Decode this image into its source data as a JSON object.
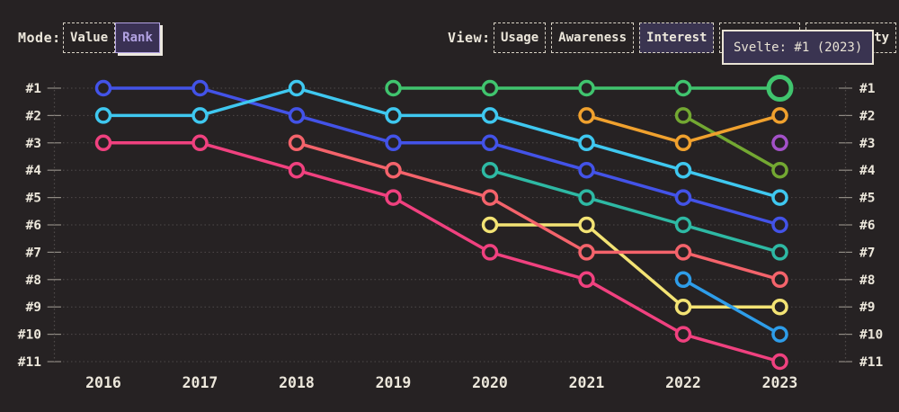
{
  "header": {
    "mode_label": "Mode:",
    "mode_options": [
      {
        "label": "Value",
        "selected": false
      },
      {
        "label": "Rank",
        "selected": true
      }
    ],
    "view_label": "View:",
    "view_options": [
      {
        "label": "Usage",
        "selected": false
      },
      {
        "label": "Awareness",
        "selected": false
      },
      {
        "label": "Interest",
        "selected": true
      },
      {
        "label": "",
        "selected": false,
        "note": "button fully covered by tooltip"
      },
      {
        "label": "Positivity",
        "selected": false,
        "note": "mostly covered by tooltip, 'ty' visible"
      }
    ]
  },
  "tooltip": {
    "text": "Svelte: #1 (2023)"
  },
  "colors": {
    "background": "#262223",
    "text": "#ece7db",
    "grid": "#4f4a4a",
    "tick": "#8f8a83",
    "selected_mode_accent": "#b2a2e2",
    "selected_fill": "#3a3450",
    "tooltip_border": "#e9e3d5"
  },
  "chart_data": {
    "type": "line",
    "subtype": "rank-bump",
    "title": "",
    "xlabel": "",
    "ylabel": "",
    "x_labels": [
      "2016",
      "2017",
      "2018",
      "2019",
      "2020",
      "2021",
      "2022",
      "2023"
    ],
    "y_labels_left": [
      "#1",
      "#2",
      "#3",
      "#4",
      "#5",
      "#6",
      "#7",
      "#8",
      "#9",
      "#10",
      "#11"
    ],
    "y_labels_right": [
      "#1",
      "#2",
      "#3",
      "#4",
      "#5",
      "#6",
      "#7",
      "#8",
      "#9",
      "#10",
      "#11"
    ],
    "y_range": [
      1,
      11
    ],
    "y_inverted": true,
    "grid": "dotted-horizontal",
    "legend": "none",
    "series": [
      {
        "color": "#f0417f",
        "points": [
          [
            2016,
            3
          ],
          [
            2017,
            3
          ],
          [
            2018,
            4
          ],
          [
            2019,
            5
          ],
          [
            2020,
            7
          ],
          [
            2021,
            8
          ],
          [
            2022,
            10
          ],
          [
            2023,
            11
          ]
        ]
      },
      {
        "color": "#f3e374",
        "points": [
          [
            2020,
            6
          ],
          [
            2021,
            6
          ],
          [
            2022,
            9
          ],
          [
            2023,
            9
          ]
        ]
      },
      {
        "color": "#f4636b",
        "points": [
          [
            2018,
            3
          ],
          [
            2019,
            4
          ],
          [
            2020,
            5
          ],
          [
            2021,
            7
          ],
          [
            2022,
            7
          ],
          [
            2023,
            8
          ]
        ]
      },
      {
        "color": "#2e9de9",
        "points": [
          [
            2022,
            8
          ],
          [
            2023,
            10
          ]
        ]
      },
      {
        "color": "#2eb9a4",
        "points": [
          [
            2020,
            4
          ],
          [
            2021,
            5
          ],
          [
            2022,
            6
          ],
          [
            2023,
            7
          ]
        ]
      },
      {
        "color": "#4353e8",
        "points": [
          [
            2016,
            1
          ],
          [
            2017,
            1
          ],
          [
            2018,
            2
          ],
          [
            2019,
            3
          ],
          [
            2020,
            3
          ],
          [
            2021,
            4
          ],
          [
            2022,
            5
          ],
          [
            2023,
            6
          ]
        ]
      },
      {
        "color": "#3fc8f0",
        "points": [
          [
            2016,
            2
          ],
          [
            2017,
            2
          ],
          [
            2018,
            1
          ],
          [
            2019,
            2
          ],
          [
            2020,
            2
          ],
          [
            2021,
            3
          ],
          [
            2022,
            4
          ],
          [
            2023,
            5
          ]
        ]
      },
      {
        "color": "#73a832",
        "points": [
          [
            2022,
            2
          ],
          [
            2023,
            4
          ]
        ]
      },
      {
        "color": "#f0a12e",
        "points": [
          [
            2021,
            2
          ],
          [
            2022,
            3
          ],
          [
            2023,
            2
          ]
        ]
      },
      {
        "color": "#a351c8",
        "points": [
          [
            2023,
            3
          ]
        ]
      },
      {
        "name": "Svelte",
        "color": "#40c46e",
        "points": [
          [
            2019,
            1
          ],
          [
            2020,
            1
          ],
          [
            2021,
            1
          ],
          [
            2022,
            1
          ],
          [
            2023,
            1
          ]
        ],
        "highlight_x": 2023
      }
    ]
  }
}
